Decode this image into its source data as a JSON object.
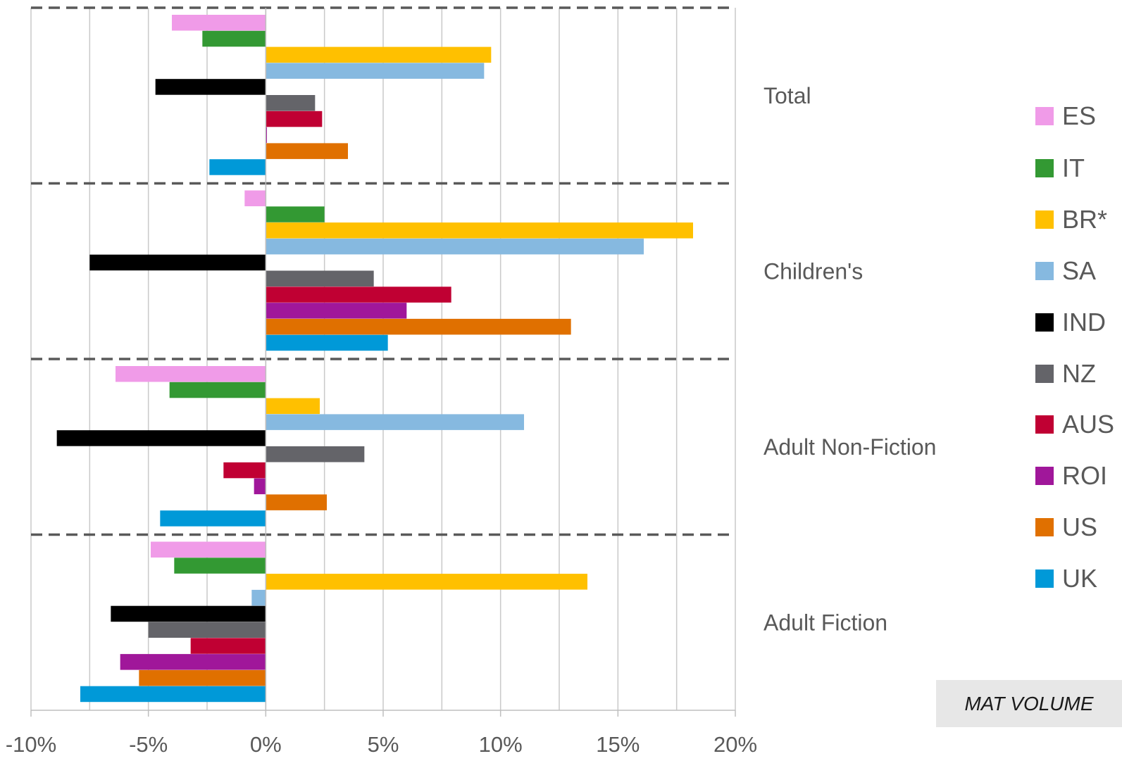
{
  "chart_data": {
    "type": "bar",
    "orientation": "horizontal",
    "title": "",
    "xlabel": "",
    "ylabel": "",
    "xlim": [
      -10,
      20
    ],
    "x_ticks": [
      "-10%",
      "-5%",
      "0%",
      "5%",
      "10%",
      "15%",
      "20%"
    ],
    "x_tick_values": [
      -10,
      -5,
      0,
      5,
      10,
      15,
      20
    ],
    "categories": [
      "Total",
      "Children's",
      "Adult Non-Fiction",
      "Adult Fiction"
    ],
    "series": [
      {
        "name": "ES",
        "color": "#f09be8",
        "values": [
          -4.0,
          -0.9,
          -6.4,
          -4.9
        ]
      },
      {
        "name": "IT",
        "color": "#339933",
        "values": [
          -2.7,
          2.5,
          -4.1,
          -3.9
        ]
      },
      {
        "name": "BR*",
        "color": "#ffc000",
        "values": [
          9.6,
          18.2,
          2.3,
          13.7
        ]
      },
      {
        "name": "SA",
        "color": "#86b9e0",
        "values": [
          9.3,
          16.1,
          11.0,
          -0.6
        ]
      },
      {
        "name": "IND",
        "color": "#000000",
        "values": [
          -4.7,
          -7.5,
          -8.9,
          -6.6
        ]
      },
      {
        "name": "NZ",
        "color": "#646469",
        "values": [
          2.1,
          4.6,
          4.2,
          -5.0
        ]
      },
      {
        "name": "AUS",
        "color": "#c00033",
        "values": [
          2.4,
          7.9,
          -1.8,
          -3.2
        ]
      },
      {
        "name": "ROI",
        "color": "#a0179a",
        "values": [
          0.05,
          6.0,
          -0.5,
          -6.2
        ]
      },
      {
        "name": "US",
        "color": "#e07000",
        "values": [
          3.5,
          13.0,
          2.6,
          -5.4
        ]
      },
      {
        "name": "UK",
        "color": "#0099d8",
        "values": [
          -2.4,
          5.2,
          -4.5,
          -7.9
        ]
      }
    ],
    "grid": true,
    "legend_position": "right"
  },
  "legend_entries": [
    "ES",
    "IT",
    "BR*",
    "SA",
    "IND",
    "NZ",
    "AUS",
    "ROI",
    "US",
    "UK"
  ],
  "badge_text": "MAT VOLUME"
}
